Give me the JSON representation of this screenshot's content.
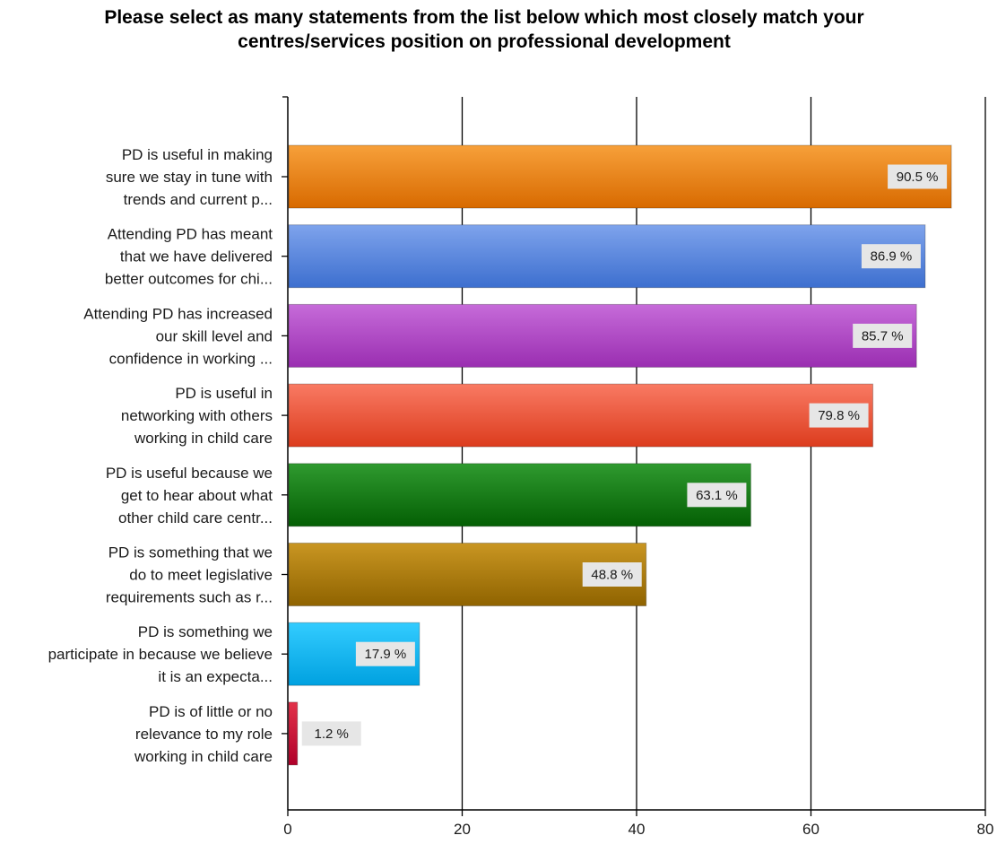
{
  "chart_data": {
    "type": "bar",
    "orientation": "horizontal",
    "title_lines": [
      "Please select as many statements from the list below which most closely match your",
      "centres/services position on professional development"
    ],
    "categories": [
      [
        "PD is useful in making",
        "sure we stay in tune with",
        "trends and current p..."
      ],
      [
        "Attending PD has meant",
        "that we have delivered",
        "better outcomes for chi..."
      ],
      [
        "Attending PD has increased",
        "our skill level and",
        "confidence in working ..."
      ],
      [
        "PD is useful in",
        "networking with others",
        "working in child care"
      ],
      [
        "PD is useful because we",
        "get to hear about what",
        "other child care centr..."
      ],
      [
        "PD is something that we",
        "do to meet legislative",
        "requirements such as r..."
      ],
      [
        "PD is something we",
        "participate in because we believe",
        "it is an expecta..."
      ],
      [
        "PD is of little or no",
        "relevance to my role",
        "working in child care"
      ]
    ],
    "values": [
      76,
      73,
      72,
      67,
      53,
      41,
      15,
      1
    ],
    "data_labels": [
      "90.5 %",
      "86.9 %",
      "85.7 %",
      "79.8 %",
      "63.1 %",
      "48.8 %",
      "17.9 %",
      "1.2 %"
    ],
    "colors": [
      [
        "#f7a03a",
        "#d86a00"
      ],
      [
        "#7ea3ec",
        "#3d6fcf"
      ],
      [
        "#c66bd9",
        "#9a2eb1"
      ],
      [
        "#f97a63",
        "#dc3c1e"
      ],
      [
        "#2f9a2f",
        "#045f04"
      ],
      [
        "#c99622",
        "#8f6300"
      ],
      [
        "#33ccff",
        "#00a1e0"
      ],
      [
        "#e2324a",
        "#b0002a"
      ]
    ],
    "xlim": [
      0,
      80
    ],
    "xticks": [
      0,
      20,
      40,
      60,
      80
    ],
    "grid": true,
    "xlabel": "",
    "ylabel": ""
  }
}
